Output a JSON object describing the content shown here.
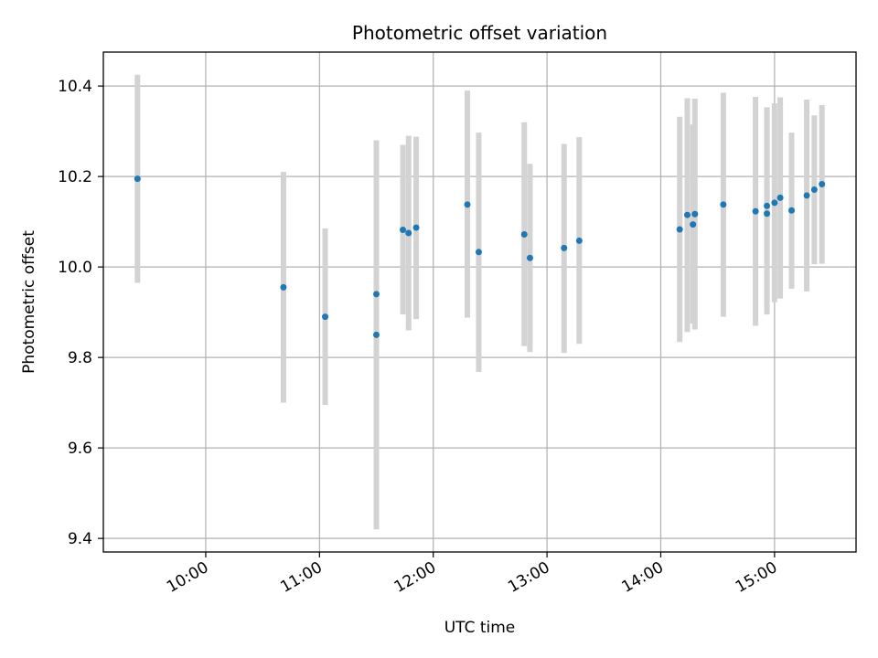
{
  "chart_data": {
    "type": "scatter",
    "title": "Photometric offset variation",
    "xlabel": "UTC time",
    "ylabel": "Photometric offset",
    "x_is_time": true,
    "xlim": [
      "09:06",
      "15:43"
    ],
    "ylim": [
      9.37,
      10.475
    ],
    "x_ticks": [
      "10:00",
      "11:00",
      "12:00",
      "13:00",
      "14:00",
      "15:00"
    ],
    "y_ticks": [
      9.4,
      9.6,
      9.8,
      10.0,
      10.2,
      10.4
    ],
    "y_tick_labels": [
      "9.4",
      "9.6",
      "9.8",
      "10.0",
      "10.2",
      "10.4"
    ],
    "grid": true,
    "colors": {
      "point": "#1f77b4",
      "errorbar": "#d3d3d3",
      "grid": "#b0b0b0"
    },
    "points": [
      {
        "x": "09:24",
        "y": 10.195,
        "ylo": 9.965,
        "yhi": 10.425
      },
      {
        "x": "10:41",
        "y": 9.955,
        "ylo": 9.7,
        "yhi": 10.21
      },
      {
        "x": "11:03",
        "y": 9.89,
        "ylo": 9.695,
        "yhi": 10.085
      },
      {
        "x": "11:30",
        "y": 9.94,
        "ylo": 9.775,
        "yhi": 10.105
      },
      {
        "x": "11:30",
        "y": 9.85,
        "ylo": 9.42,
        "yhi": 10.28
      },
      {
        "x": "11:44",
        "y": 10.082,
        "ylo": 9.895,
        "yhi": 10.27
      },
      {
        "x": "11:47",
        "y": 10.075,
        "ylo": 9.86,
        "yhi": 10.29
      },
      {
        "x": "11:51",
        "y": 10.087,
        "ylo": 9.885,
        "yhi": 10.288
      },
      {
        "x": "12:18",
        "y": 10.138,
        "ylo": 9.888,
        "yhi": 10.39
      },
      {
        "x": "12:24",
        "y": 10.033,
        "ylo": 9.768,
        "yhi": 10.297
      },
      {
        "x": "12:48",
        "y": 10.072,
        "ylo": 9.825,
        "yhi": 10.32
      },
      {
        "x": "12:51",
        "y": 10.02,
        "ylo": 9.812,
        "yhi": 10.228
      },
      {
        "x": "13:09",
        "y": 10.042,
        "ylo": 9.81,
        "yhi": 10.272
      },
      {
        "x": "13:17",
        "y": 10.058,
        "ylo": 9.83,
        "yhi": 10.287
      },
      {
        "x": "14:10",
        "y": 10.083,
        "ylo": 9.834,
        "yhi": 10.332
      },
      {
        "x": "14:14",
        "y": 10.115,
        "ylo": 9.856,
        "yhi": 10.373
      },
      {
        "x": "14:17",
        "y": 10.094,
        "ylo": 9.875,
        "yhi": 10.315
      },
      {
        "x": "14:18",
        "y": 10.117,
        "ylo": 9.862,
        "yhi": 10.372
      },
      {
        "x": "14:33",
        "y": 10.138,
        "ylo": 9.89,
        "yhi": 10.385
      },
      {
        "x": "14:50",
        "y": 10.123,
        "ylo": 9.87,
        "yhi": 10.376
      },
      {
        "x": "14:56",
        "y": 10.118,
        "ylo": 9.895,
        "yhi": 10.343
      },
      {
        "x": "14:56",
        "y": 10.135,
        "ylo": 9.905,
        "yhi": 10.353
      },
      {
        "x": "15:00",
        "y": 10.142,
        "ylo": 9.922,
        "yhi": 10.362
      },
      {
        "x": "15:03",
        "y": 10.153,
        "ylo": 9.93,
        "yhi": 10.375
      },
      {
        "x": "15:09",
        "y": 10.125,
        "ylo": 9.952,
        "yhi": 10.297
      },
      {
        "x": "15:17",
        "y": 10.158,
        "ylo": 9.946,
        "yhi": 10.37
      },
      {
        "x": "15:21",
        "y": 10.171,
        "ylo": 10.006,
        "yhi": 10.335
      },
      {
        "x": "15:25",
        "y": 10.183,
        "ylo": 10.007,
        "yhi": 10.358
      }
    ]
  }
}
